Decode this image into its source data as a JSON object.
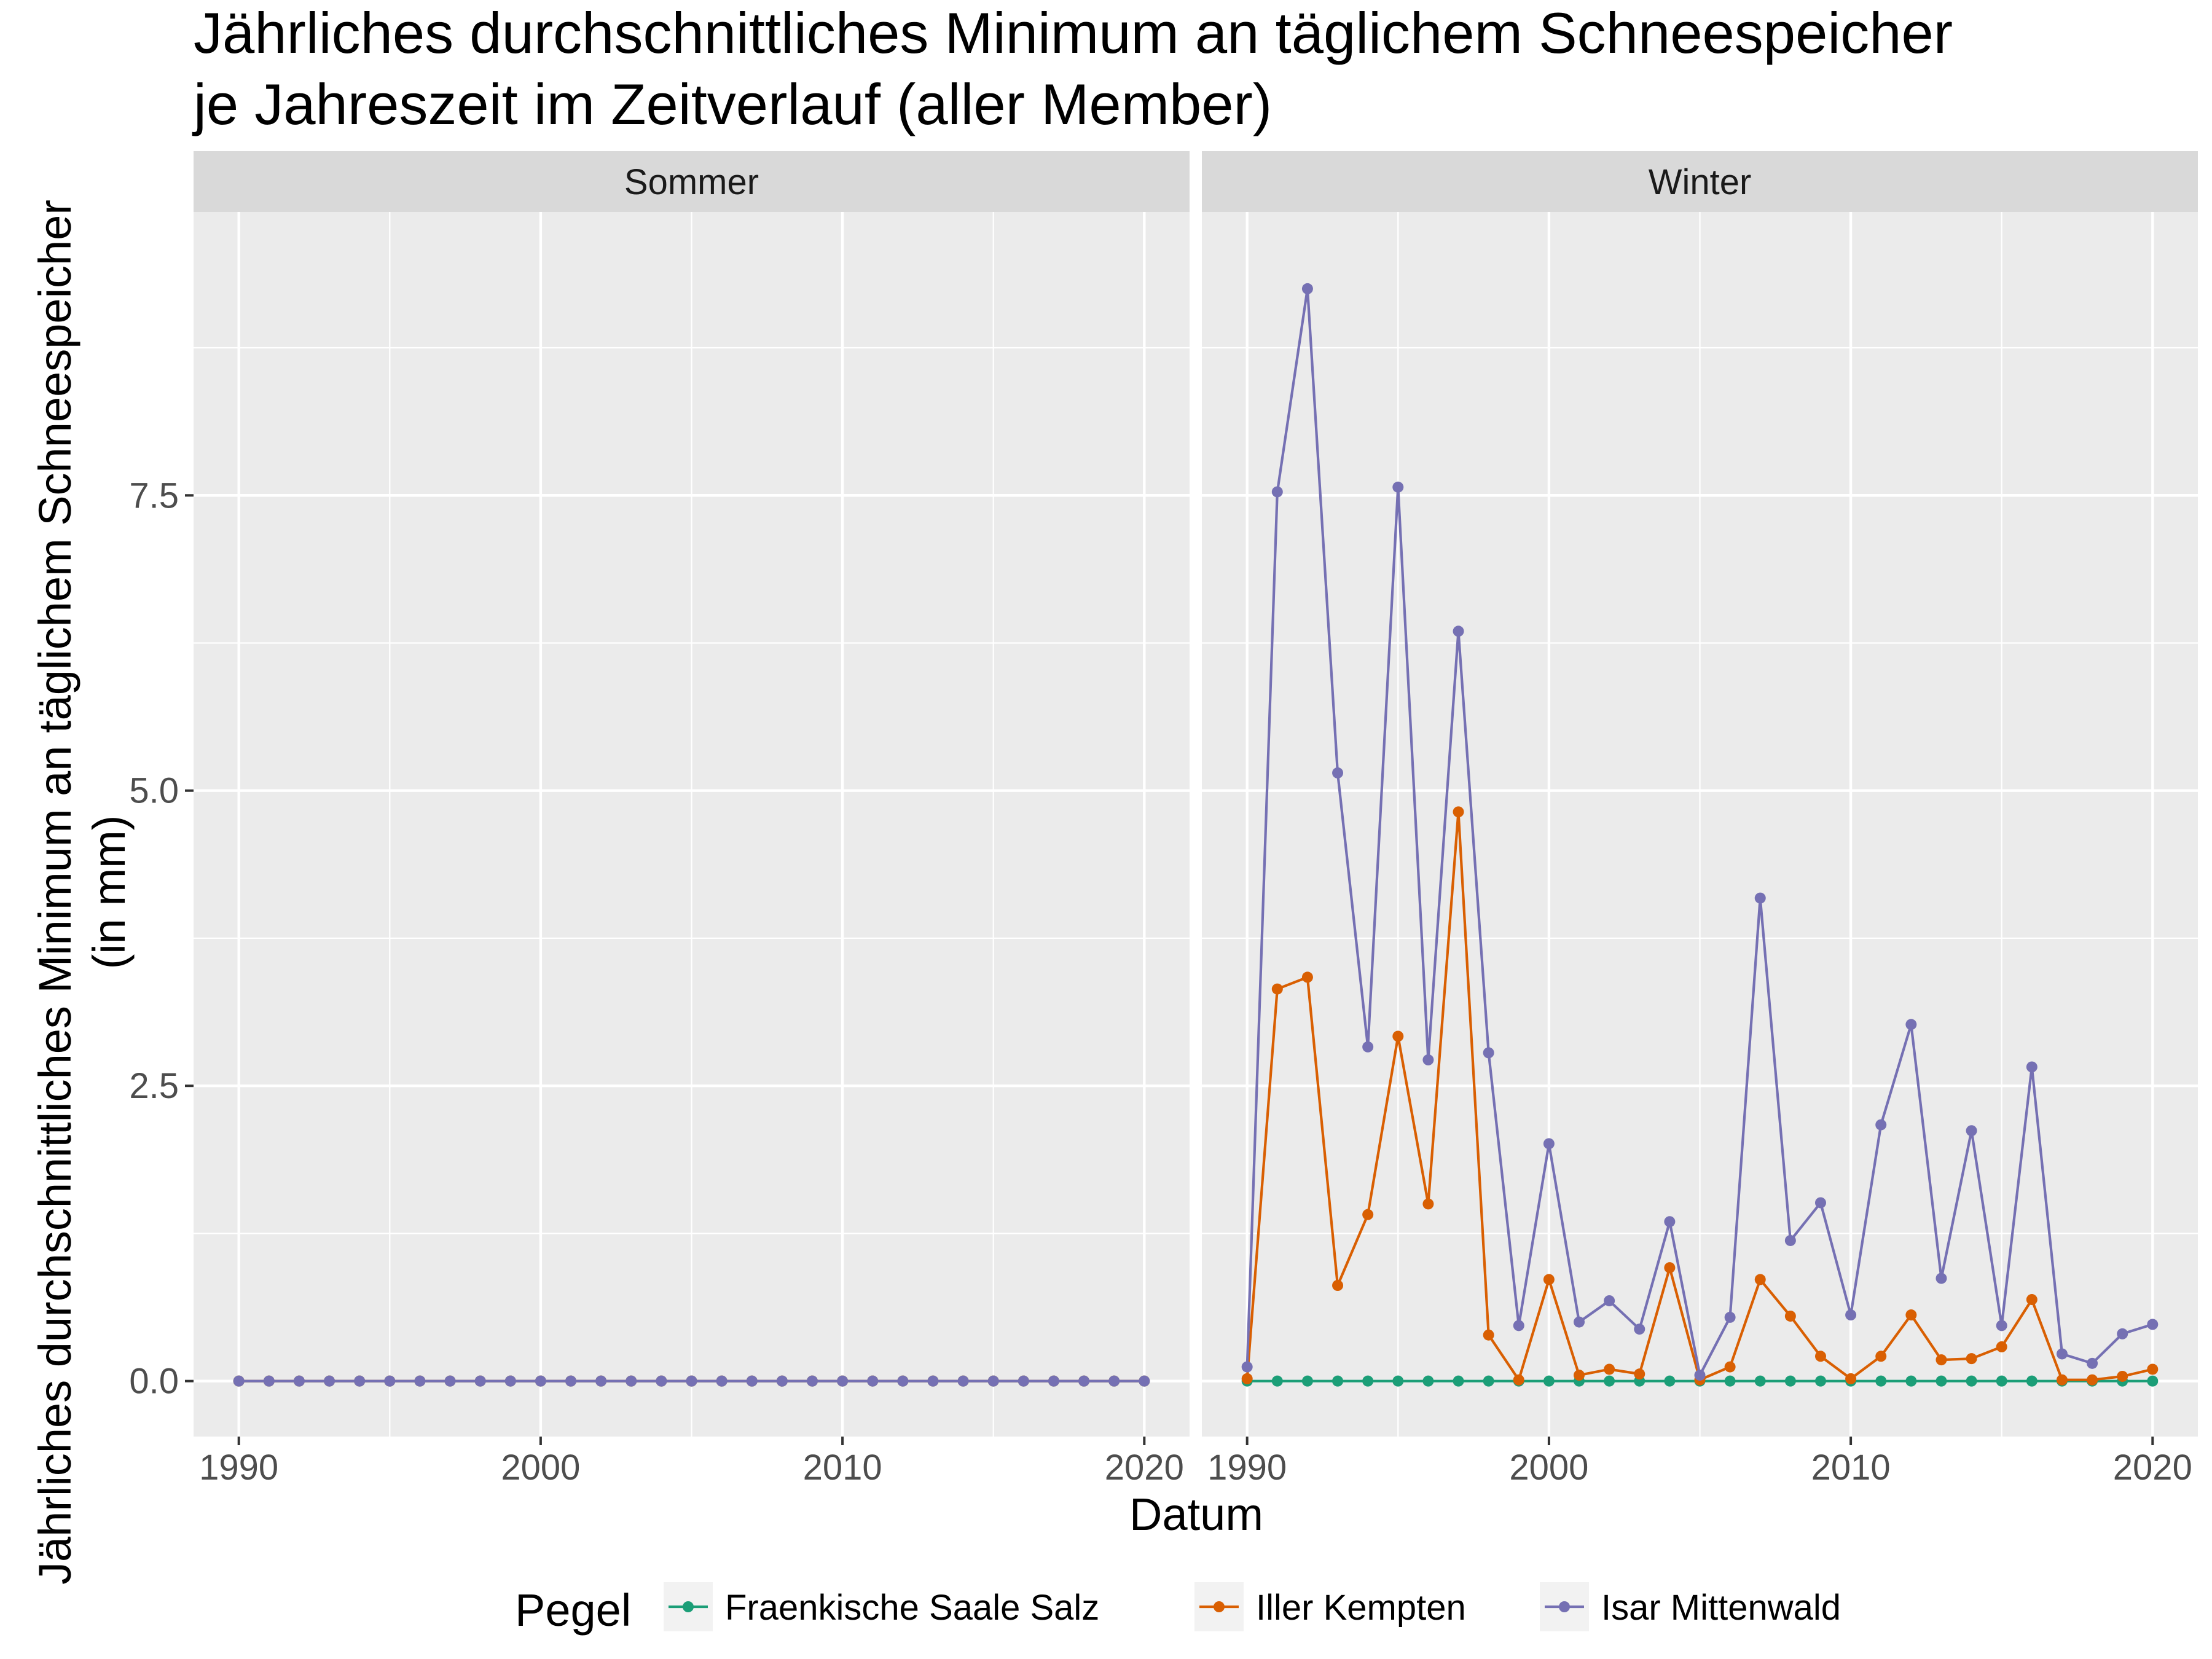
{
  "chart_data": {
    "type": "line",
    "title": "Jährliches durchschnittliches Minimum an täglichem Schneespeicher je Jahreszeit im Zeitverlauf (aller Member)",
    "title_lines": [
      "Jährliches durchschnittliches Minimum an täglichem Schneespeicher",
      "je Jahreszeit im Zeitverlauf (aller Member)"
    ],
    "xlabel": "Datum",
    "ylabel": "Jährliches durchschnittliches Minimum an täglichem Schneespeicher (in mm)",
    "ylabel_lines": [
      "Jährliches durchschnittliches Minimum an täglichem Schneespeicher",
      "(in mm)"
    ],
    "xlim": [
      1988.5,
      2021.5
    ],
    "ylim": [
      -0.47,
      9.9
    ],
    "x_ticks": [
      1990,
      2000,
      2010,
      2020
    ],
    "x_tick_labels": [
      "1990",
      "2000",
      "2010",
      "2020"
    ],
    "y_ticks": [
      0,
      2.5,
      5,
      7.5
    ],
    "y_tick_labels": [
      "0.0",
      "2.5",
      "5.0",
      "7.5"
    ],
    "grid": true,
    "legend": {
      "title": "Pegel",
      "position": "bottom",
      "entries": [
        "Fraenkische Saale Salz",
        "Iller Kempten",
        "Isar Mittenwald"
      ]
    },
    "colors": {
      "Fraenkische Saale Salz": "#1b9e77",
      "Iller Kempten": "#d95f02",
      "Isar Mittenwald": "#7570b3"
    },
    "panels": [
      {
        "label": "Sommer",
        "x": [
          1990,
          1991,
          1992,
          1993,
          1994,
          1995,
          1996,
          1997,
          1998,
          1999,
          2000,
          2001,
          2002,
          2003,
          2004,
          2005,
          2006,
          2007,
          2008,
          2009,
          2010,
          2011,
          2012,
          2013,
          2014,
          2015,
          2016,
          2017,
          2018,
          2019,
          2020
        ],
        "series": [
          {
            "name": "Fraenkische Saale Salz",
            "values": [
              0,
              0,
              0,
              0,
              0,
              0,
              0,
              0,
              0,
              0,
              0,
              0,
              0,
              0,
              0,
              0,
              0,
              0,
              0,
              0,
              0,
              0,
              0,
              0,
              0,
              0,
              0,
              0,
              0,
              0,
              0
            ]
          },
          {
            "name": "Iller Kempten",
            "values": [
              0,
              0,
              0,
              0,
              0,
              0,
              0,
              0,
              0,
              0,
              0,
              0,
              0,
              0,
              0,
              0,
              0,
              0,
              0,
              0,
              0,
              0,
              0,
              0,
              0,
              0,
              0,
              0,
              0,
              0,
              0
            ]
          },
          {
            "name": "Isar Mittenwald",
            "values": [
              0,
              0,
              0,
              0,
              0,
              0,
              0,
              0,
              0,
              0,
              0,
              0,
              0,
              0,
              0,
              0,
              0,
              0,
              0,
              0,
              0,
              0,
              0,
              0,
              0,
              0,
              0,
              0,
              0,
              0,
              0
            ]
          }
        ]
      },
      {
        "label": "Winter",
        "x": [
          1990,
          1991,
          1992,
          1993,
          1994,
          1995,
          1996,
          1997,
          1998,
          1999,
          2000,
          2001,
          2002,
          2003,
          2004,
          2005,
          2006,
          2007,
          2008,
          2009,
          2010,
          2011,
          2012,
          2013,
          2014,
          2015,
          2016,
          2017,
          2018,
          2019,
          2020
        ],
        "series": [
          {
            "name": "Fraenkische Saale Salz",
            "values": [
              0,
              0,
              0,
              0,
              0,
              0,
              0,
              0,
              0,
              0,
              0,
              0,
              0,
              0,
              0,
              0,
              0,
              0,
              0,
              0,
              0,
              0,
              0,
              0,
              0,
              0,
              0,
              0,
              0,
              0,
              0
            ]
          },
          {
            "name": "Iller Kempten",
            "values": [
              0.02,
              3.32,
              3.42,
              0.81,
              1.41,
              2.92,
              1.5,
              4.82,
              0.39,
              0.01,
              0.86,
              0.05,
              0.1,
              0.06,
              0.96,
              0.01,
              0.12,
              0.86,
              0.55,
              0.21,
              0.02,
              0.21,
              0.56,
              0.18,
              0.19,
              0.29,
              0.69,
              0.01,
              0.01,
              0.04,
              0.1
            ]
          },
          {
            "name": "Isar Mittenwald",
            "values": [
              0.12,
              7.53,
              9.25,
              5.15,
              2.83,
              7.57,
              2.72,
              6.35,
              2.78,
              0.47,
              2.01,
              0.5,
              0.68,
              0.44,
              1.35,
              0.05,
              0.54,
              4.09,
              1.19,
              1.51,
              0.56,
              2.17,
              3.02,
              0.87,
              2.12,
              0.47,
              2.66,
              0.23,
              0.15,
              0.4,
              0.48
            ]
          }
        ]
      }
    ]
  }
}
